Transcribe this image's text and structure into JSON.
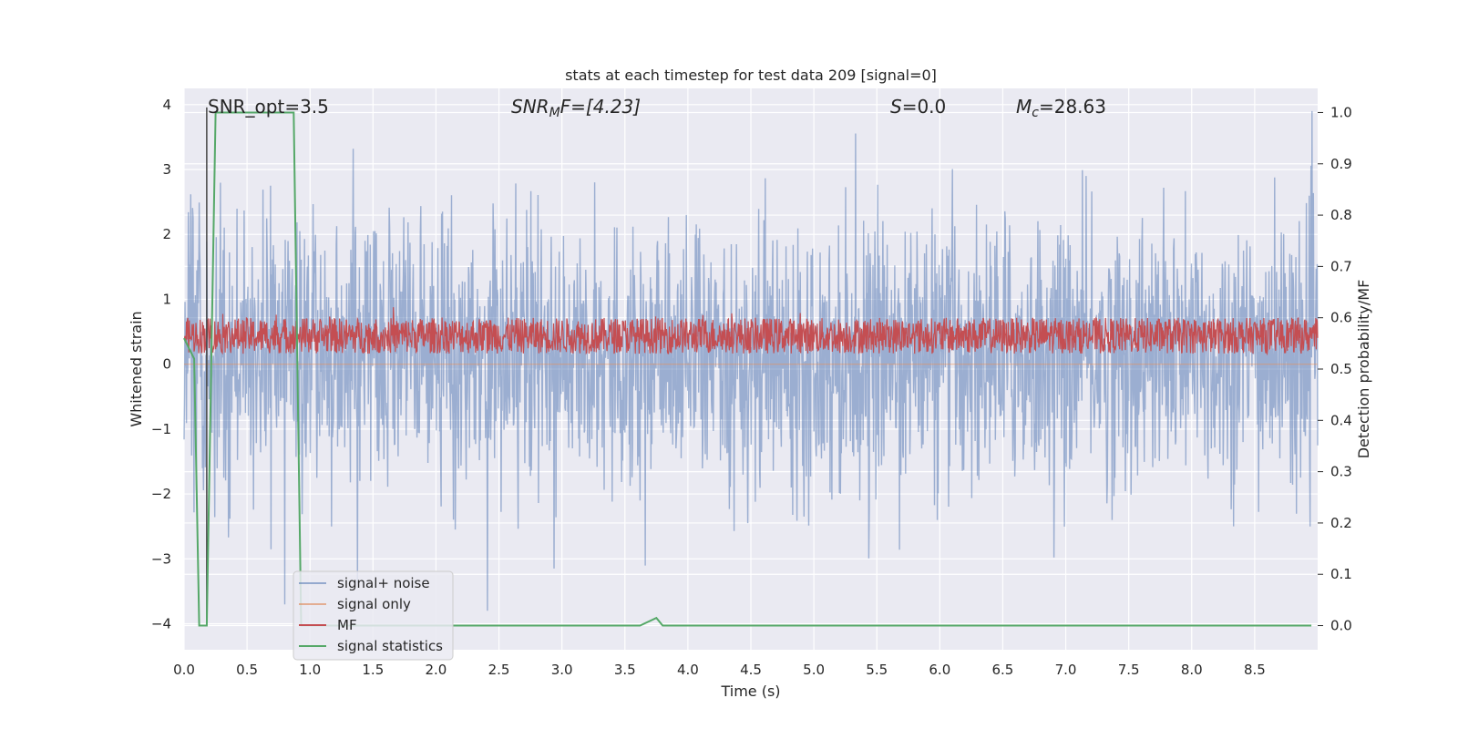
{
  "chart_data": {
    "type": "line",
    "title": "stats at each timestep for test data 209 [signal=0]",
    "xlabel": "Time (s)",
    "ylabel_left": "Whitened strain",
    "ylabel_right": "Detection probability/MF",
    "xlim": [
      0.0,
      9.0
    ],
    "ylim_left": [
      -4.4,
      4.25
    ],
    "ylim_right": [
      -0.047,
      1.047
    ],
    "x_ticks": [
      "0.0",
      "0.5",
      "1.0",
      "1.5",
      "2.0",
      "2.5",
      "3.0",
      "3.5",
      "4.0",
      "4.5",
      "5.0",
      "5.5",
      "6.0",
      "6.5",
      "7.0",
      "7.5",
      "8.0",
      "8.5"
    ],
    "y_ticks_left": [
      "−4",
      "−3",
      "−2",
      "−1",
      "0",
      "1",
      "2",
      "3",
      "4"
    ],
    "y_ticks_right": [
      "0.0",
      "0.1",
      "0.2",
      "0.3",
      "0.4",
      "0.5",
      "0.6",
      "0.7",
      "0.8",
      "0.9",
      "1.0"
    ],
    "grid": true,
    "legend_placement": "lower-left",
    "annotations": {
      "snr_opt": "SNR_opt=3.5",
      "snr_mf_sym": "SNR",
      "snr_mf_sub": "M",
      "snr_mf_rest": "F=[4.23]",
      "s_sym": "S",
      "s_rest": "=0.0",
      "mc_sym": "M",
      "mc_sub": "c",
      "mc_rest": "=28.63"
    },
    "series": [
      {
        "name": "signal+ noise",
        "color": "#4c72b0",
        "axis": "left",
        "approx": "noise oscillating between about -2.0 and 2.3, peaks to 3.9 / -3.8"
      },
      {
        "name": "signal only",
        "color": "#dd8452",
        "axis": "left",
        "approx": "flat at 0"
      },
      {
        "name": "MF",
        "color": "#c44e52",
        "axis": "right",
        "approx": "fluctuating between about 0.53 and 0.62"
      },
      {
        "name": "signal statistics",
        "color": "#55a868",
        "axis": "right",
        "x": [
          0.0,
          0.08,
          0.12,
          0.18,
          0.25,
          0.87,
          0.93,
          1.0,
          3.62,
          3.75,
          3.8,
          8.95
        ],
        "values": [
          0.56,
          0.52,
          0.0,
          0.0,
          1.0,
          1.0,
          0.0,
          0.0,
          0.0,
          0.015,
          0.0,
          0.0
        ]
      }
    ],
    "vertical_line": {
      "x": 0.18,
      "color": "#444444"
    }
  },
  "colors": {
    "plot_bg": "#eaeaf2",
    "grid": "#ffffff",
    "noise": "#4c72b0",
    "signal_only": "#dd8452",
    "mf": "#c44e52",
    "stat": "#55a868"
  }
}
